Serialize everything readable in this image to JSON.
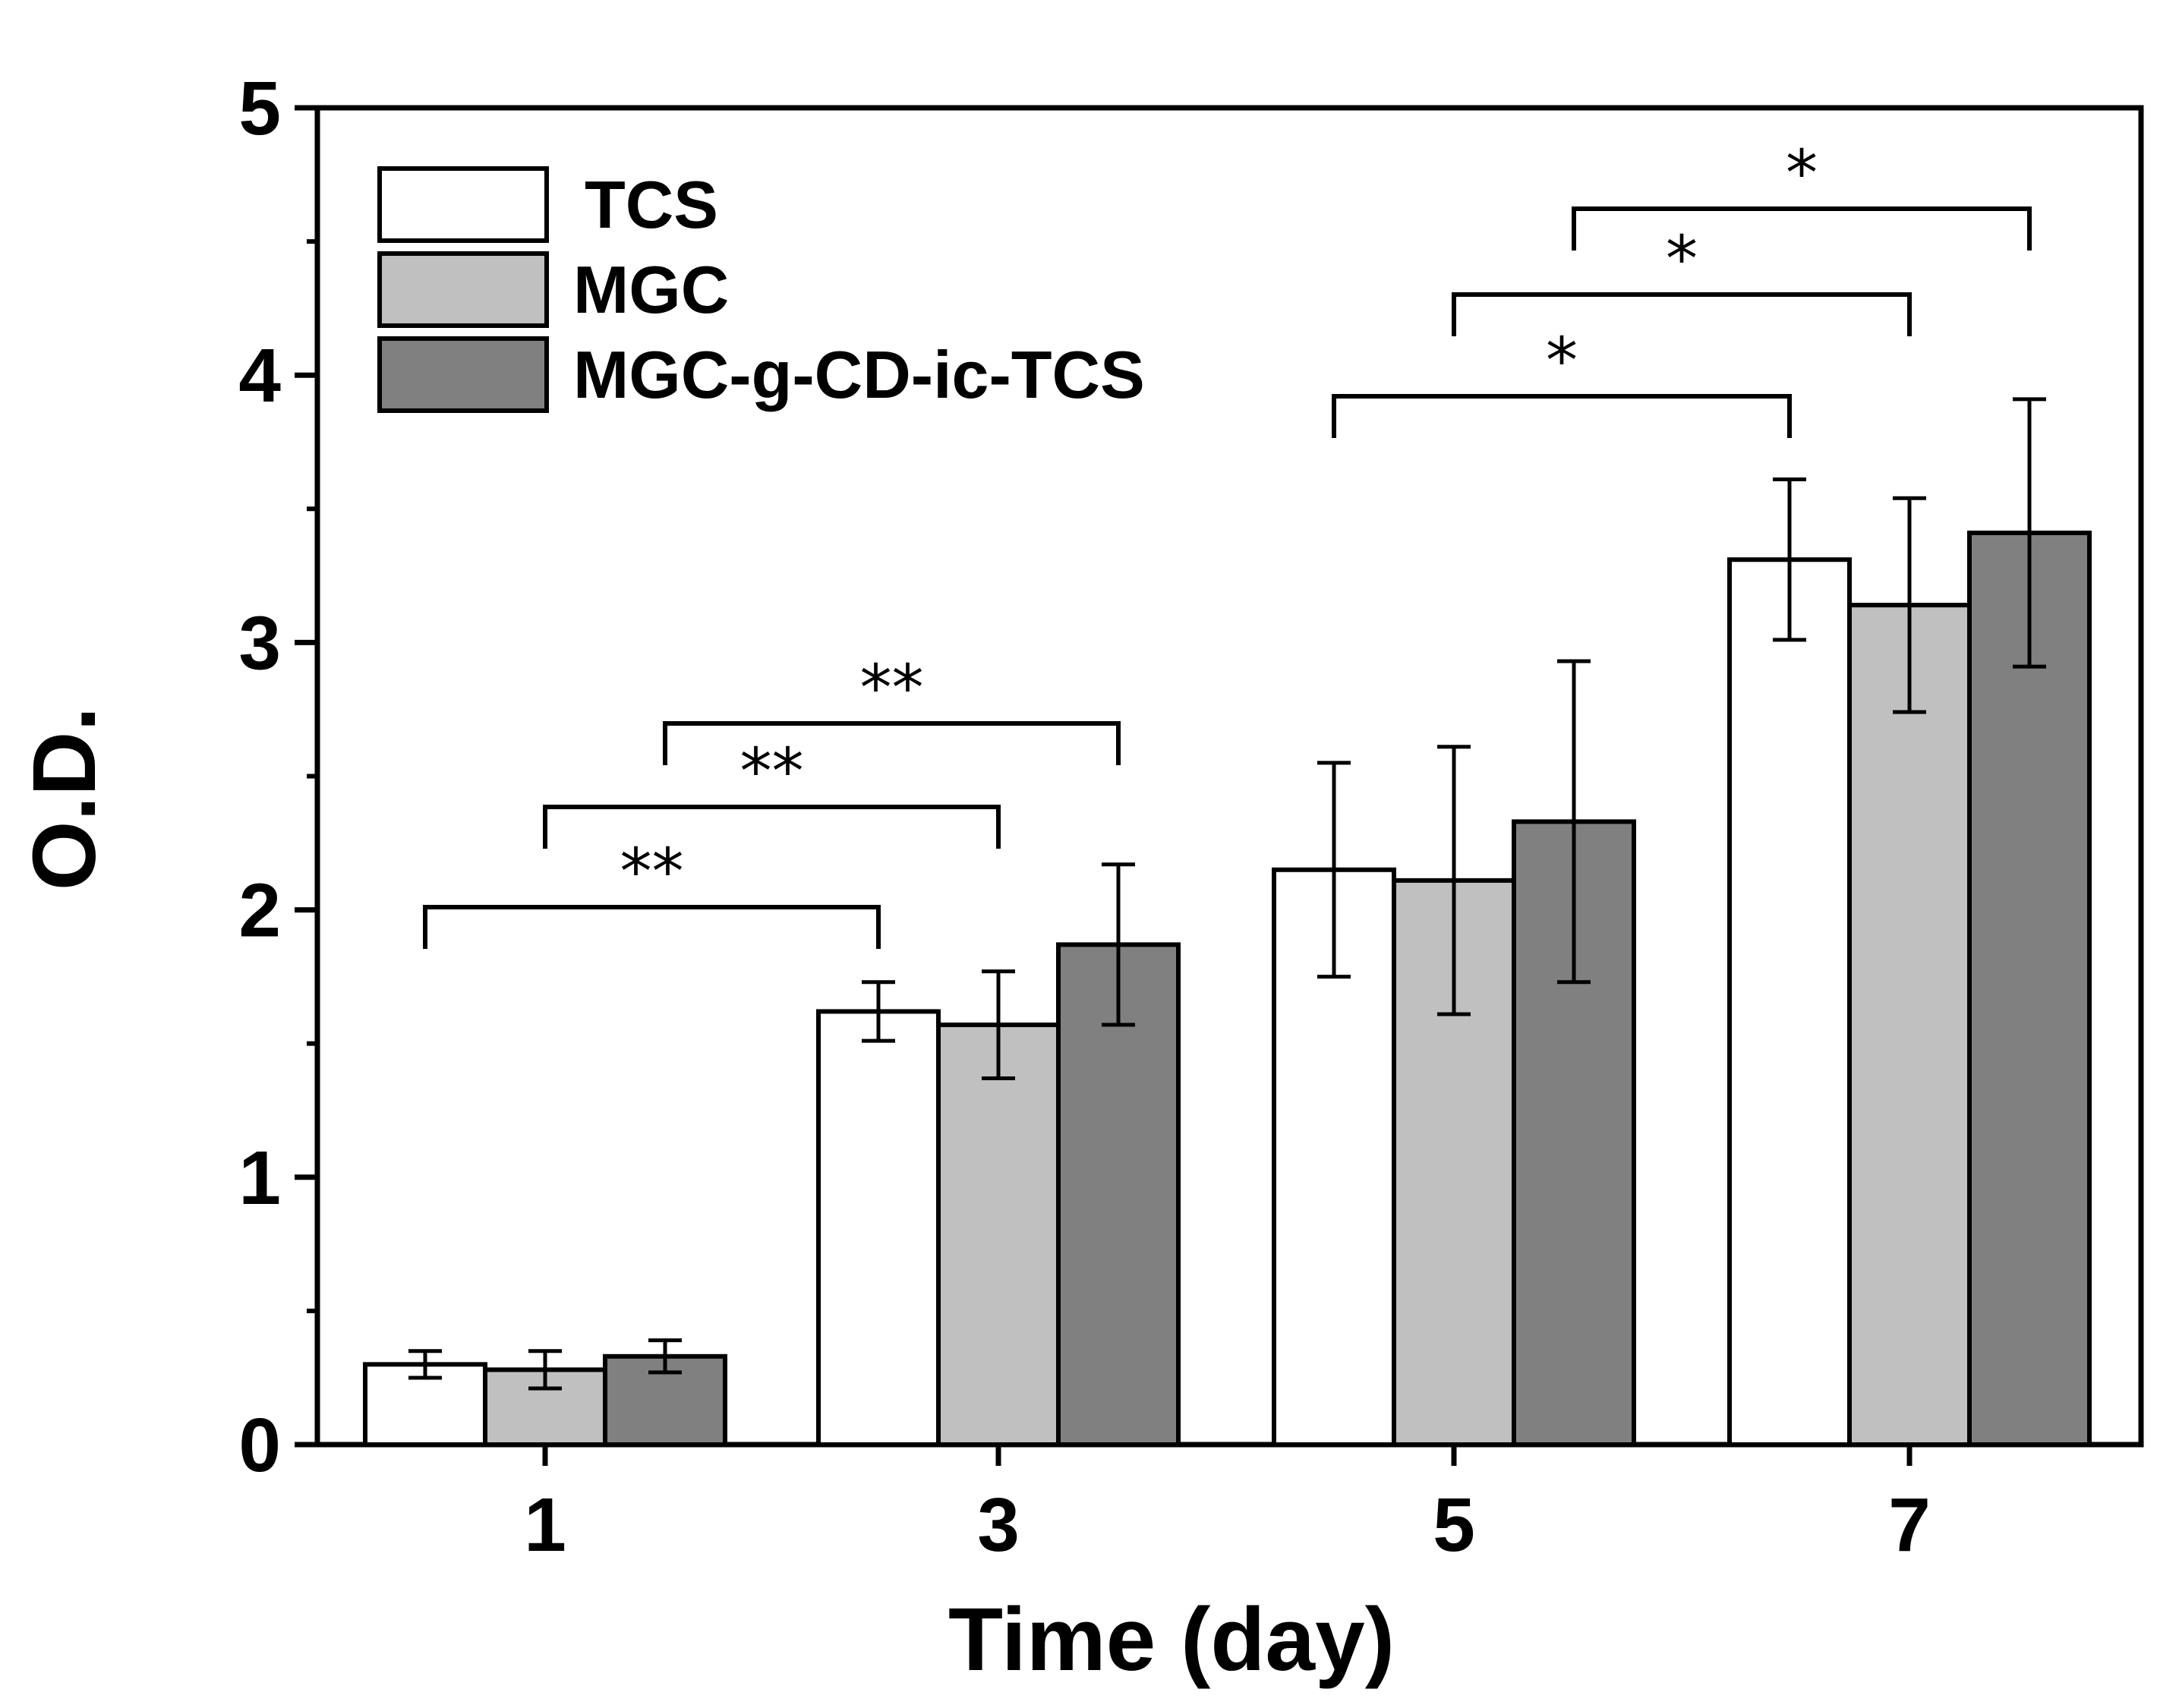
{
  "chart_data": {
    "type": "bar",
    "title": "",
    "xlabel": "Time (day)",
    "ylabel": "O.D.",
    "ylim": [
      0,
      5
    ],
    "yticks": [
      "0",
      "1",
      "2",
      "3",
      "4",
      "5"
    ],
    "categories": [
      "1",
      "3",
      "5",
      "7"
    ],
    "series": [
      {
        "name": "TCS",
        "color": "#ffffff",
        "values": [
          0.3,
          1.62,
          2.15,
          3.31
        ],
        "errors": [
          0.05,
          0.11,
          0.4,
          0.3
        ]
      },
      {
        "name": "MGC",
        "color": "#c0c0c0",
        "values": [
          0.28,
          1.57,
          2.11,
          3.14
        ],
        "errors": [
          0.07,
          0.2,
          0.5,
          0.4
        ]
      },
      {
        "name": "MGC-g-CD-ic-TCS",
        "color": "#808080",
        "values": [
          0.33,
          1.87,
          2.33,
          3.41
        ],
        "errors": [
          0.06,
          0.3,
          0.6,
          0.5
        ]
      }
    ],
    "significance": [
      {
        "from_category": "1",
        "to_category": "3",
        "series": "TCS",
        "label": "**"
      },
      {
        "from_category": "1",
        "to_category": "3",
        "series": "MGC",
        "label": "**"
      },
      {
        "from_category": "1",
        "to_category": "3",
        "series": "MGC-g-CD-ic-TCS",
        "label": "**"
      },
      {
        "from_category": "5",
        "to_category": "7",
        "series": "TCS",
        "label": "*"
      },
      {
        "from_category": "5",
        "to_category": "7",
        "series": "MGC",
        "label": "*"
      },
      {
        "from_category": "5",
        "to_category": "7",
        "series": "MGC-g-CD-ic-TCS",
        "label": "*"
      }
    ],
    "legend": {
      "position": "top-left",
      "entries": [
        "TCS",
        "MGC",
        "MGC-g-CD-ic-TCS"
      ]
    }
  }
}
